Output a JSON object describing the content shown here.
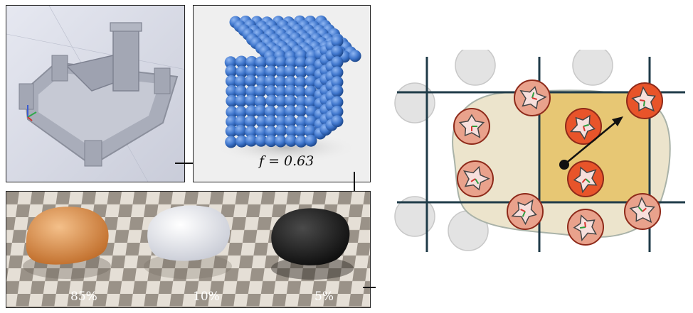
{
  "packing": {
    "fraction_label": "f = 0.63"
  },
  "materials": [
    {
      "percent": "85%",
      "color": "#e0944f"
    },
    {
      "percent": "10%",
      "color": "#eef0f4"
    },
    {
      "percent": "5%",
      "color": "#1c1c1c"
    }
  ],
  "colors": {
    "grid_line": "#1f3b48",
    "blob_fill": "#ece4cc",
    "cell_fill": "#e7c774",
    "particle_ring": "#e8542a",
    "particle_inner": "#f7dfdc"
  }
}
